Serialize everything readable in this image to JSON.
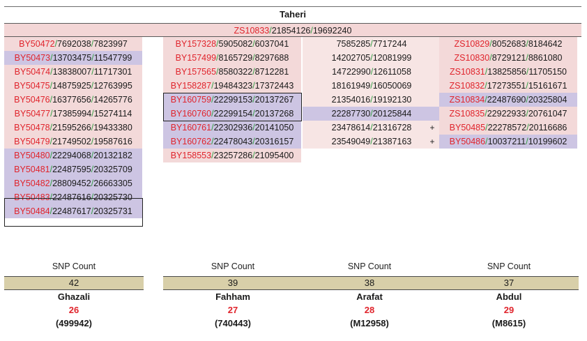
{
  "title": "Taheri",
  "root": {
    "id": "ZS10833",
    "a": "21854126",
    "b": "19692240"
  },
  "columns": [
    {
      "rows": [
        {
          "id": "BY50472",
          "a": "7692038",
          "b": "7823997",
          "bg": "pink"
        },
        {
          "id": "BY50473",
          "a": "13703475",
          "b": "11547799",
          "bg": "lav"
        },
        {
          "id": "BY50474",
          "a": "13838007",
          "b": "11717301",
          "bg": "pink"
        },
        {
          "id": "BY50475",
          "a": "14875925",
          "b": "12763995",
          "bg": "pink"
        },
        {
          "id": "BY50476",
          "a": "16377656",
          "b": "14265776",
          "bg": "pink"
        },
        {
          "id": "BY50477",
          "a": "17385994",
          "b": "15274114",
          "bg": "pink"
        },
        {
          "id": "BY50478",
          "a": "21595266",
          "b": "19433380",
          "bg": "pink"
        },
        {
          "id": "BY50479",
          "a": "21749502",
          "b": "19587616",
          "bg": "pink"
        },
        {
          "id": "BY50480",
          "a": "22294068",
          "b": "20132182",
          "bg": "lav"
        },
        {
          "id": "BY50481",
          "a": "22487595",
          "b": "20325709",
          "bg": "lav"
        },
        {
          "id": "BY50482",
          "a": "28809452",
          "b": "26663305",
          "bg": "lav"
        },
        {
          "id": "BY50483",
          "a": "22487616",
          "b": "20325730",
          "bg": "lav"
        },
        {
          "id": "BY50484",
          "a": "22487617",
          "b": "20325731",
          "bg": "lav"
        }
      ]
    },
    {
      "rows": [
        {
          "id": "BY157328",
          "a": "5905082",
          "b": "6037041",
          "bg": "pink"
        },
        {
          "id": "BY157499",
          "a": "8165729",
          "b": "8297688",
          "bg": "pink"
        },
        {
          "id": "BY157565",
          "a": "8580322",
          "b": "8712281",
          "bg": "pink"
        },
        {
          "id": "BY158287",
          "a": "19484323",
          "b": "17372443",
          "bg": "pink"
        },
        {
          "id": "BY160759",
          "a": "22299153",
          "b": "20137267",
          "bg": "lav"
        },
        {
          "id": "BY160760",
          "a": "22299154",
          "b": "20137268",
          "bg": "lav"
        },
        {
          "id": "BY160761",
          "a": "22302936",
          "b": "20141050",
          "bg": "lav"
        },
        {
          "id": "BY160762",
          "a": "22478043",
          "b": "20316157",
          "bg": "lav"
        },
        {
          "id": "BY158553",
          "a": "23257286",
          "b": "21095400",
          "bg": "pink"
        }
      ]
    },
    {
      "rows": [
        {
          "id": "",
          "a": "7585285",
          "b": "7717244",
          "bg": "pale"
        },
        {
          "id": "",
          "a": "14202705",
          "b": "12081999",
          "bg": "pale"
        },
        {
          "id": "",
          "a": "14722990",
          "b": "12611058",
          "bg": "pale"
        },
        {
          "id": "",
          "a": "18161949",
          "b": "16050069",
          "bg": "pale"
        },
        {
          "id": "",
          "a": "21354016",
          "b": "19192130",
          "bg": "pale"
        },
        {
          "id": "",
          "a": "22287730",
          "b": "20125844",
          "bg": "lav"
        },
        {
          "id": "",
          "a": "23478614",
          "b": "21316728",
          "bg": "pale"
        },
        {
          "id": "",
          "a": "23549049",
          "b": "21387163",
          "bg": "pale"
        }
      ]
    },
    {
      "rows": [
        {
          "id": "ZS10829",
          "a": "8052683",
          "b": "8184642",
          "bg": "pink"
        },
        {
          "id": "ZS10830",
          "a": "8729121",
          "b": "8861080",
          "bg": "pink"
        },
        {
          "id": "ZS10831",
          "a": "13825856",
          "b": "11705150",
          "bg": "pink"
        },
        {
          "id": "ZS10832",
          "a": "17273551",
          "b": "15161671",
          "bg": "pink"
        },
        {
          "id": "ZS10834",
          "a": "22487690",
          "b": "20325804",
          "bg": "lav"
        },
        {
          "id": "ZS10835",
          "a": "22922933",
          "b": "20761047",
          "bg": "pink"
        },
        {
          "id": "BY50485",
          "a": "22278572",
          "b": "20116686",
          "bg": "pink"
        },
        {
          "id": "BY50486",
          "a": "10037211",
          "b": "10199602",
          "bg": "lav"
        }
      ]
    }
  ],
  "plus_symbol": "+",
  "stats": [
    {
      "label": "SNP Count",
      "count": "42",
      "name": "Ghazali",
      "number": "26",
      "code": "(499942)"
    },
    {
      "label": "SNP Count",
      "count": "39",
      "name": "Fahham",
      "number": "27",
      "code": "(740443)"
    },
    {
      "label": "SNP Count",
      "count": "38",
      "name": "Arafat",
      "number": "28",
      "code": "(M12958)"
    },
    {
      "label": "SNP Count",
      "count": "37",
      "name": "Abdul",
      "number": "29",
      "code": "(M8615)"
    }
  ]
}
